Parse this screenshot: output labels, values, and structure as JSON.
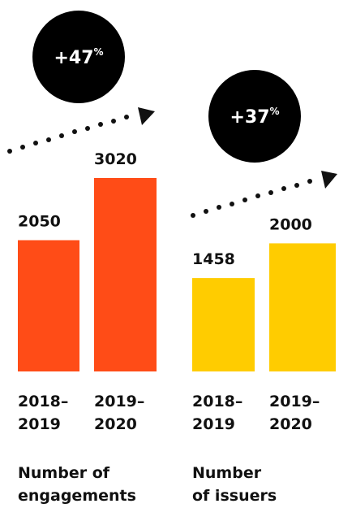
{
  "chart_data": [
    {
      "type": "bar",
      "categories": [
        "2018–2019",
        "2019–2020"
      ],
      "category_lines": [
        [
          "2018–",
          "2019"
        ],
        [
          "2019–",
          "2020"
        ]
      ],
      "values": [
        2050,
        3020
      ],
      "value_labels": [
        "2050",
        "3020"
      ],
      "caption_lines": [
        "Number of",
        "engagements"
      ],
      "change": {
        "number": "+47",
        "unit": "%"
      },
      "color": "#ff4c17",
      "ylim": [
        0,
        3020
      ]
    },
    {
      "type": "bar",
      "categories": [
        "2018–2019",
        "2019–2020"
      ],
      "category_lines": [
        [
          "2018–",
          "2019"
        ],
        [
          "2019–",
          "2020"
        ]
      ],
      "values": [
        1458,
        2000
      ],
      "value_labels": [
        "1458",
        "2000"
      ],
      "caption_lines": [
        "Number",
        "of issuers"
      ],
      "change": {
        "number": "+37",
        "unit": "%"
      },
      "color": "#ffcc00",
      "ylim": [
        0,
        3020
      ]
    }
  ],
  "colors": {
    "badge": "#000000",
    "text": "#111111",
    "dots": "#111111"
  }
}
